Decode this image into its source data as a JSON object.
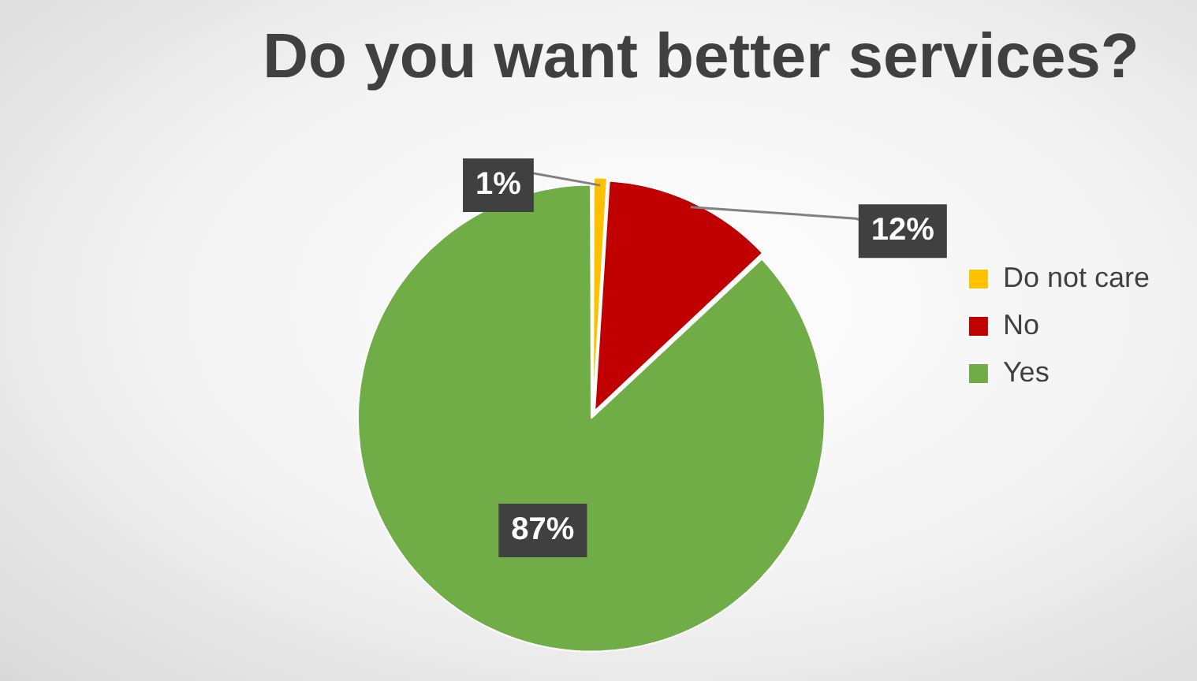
{
  "chart_data": {
    "type": "pie",
    "title": "Do you want better services?",
    "categories": [
      "Do not care",
      "No",
      "Yes"
    ],
    "values": [
      1,
      12,
      87
    ],
    "colors": [
      "#ffc000",
      "#c00000",
      "#70ad47"
    ],
    "value_labels": [
      "1%",
      "12%",
      "87%"
    ],
    "legend": "right"
  }
}
